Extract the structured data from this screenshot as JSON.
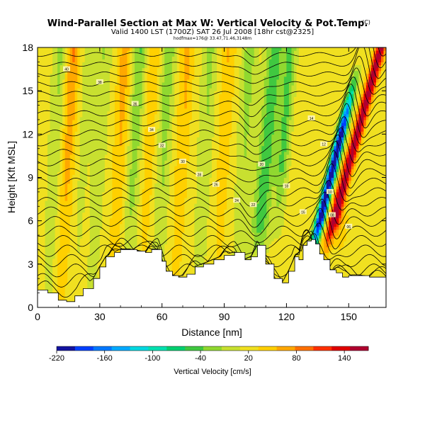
{
  "chart_data": {
    "type": "heatmap",
    "title": "Wind-Parallel Section at Max W: Vertical Velocity & Pot.Temp.",
    "title_mark": "(C)",
    "subtitle": "Valid 1400 LST (1700Z) SAT 26 Jul 2008 [18hr cst@2325]",
    "subtitle2": "hodfmax=176@ 33.47,71.46,3148m",
    "xlabel": "Distance [nm]",
    "ylabel": "Height [Kft MSL]",
    "xlim": [
      0,
      168
    ],
    "ylim": [
      0,
      18
    ],
    "xticks": [
      0,
      30,
      60,
      90,
      120,
      150
    ],
    "yticks": [
      0,
      3,
      6,
      9,
      12,
      15,
      18
    ],
    "grid": false,
    "colorbar": {
      "label": "Vertical Velocity [cm/s]",
      "tick_labels": [
        "-220",
        "-160",
        "-100",
        "-40",
        "20",
        "80",
        "140"
      ],
      "tick_values": [
        -220,
        -160,
        -100,
        -40,
        20,
        80,
        140
      ],
      "range": [
        -220,
        170
      ],
      "colors": [
        "#1414a0",
        "#0040ff",
        "#0078ff",
        "#00aaff",
        "#00d8e0",
        "#00e0b0",
        "#00d070",
        "#40c840",
        "#90d830",
        "#c8e030",
        "#f0e020",
        "#ffd000",
        "#ffa800",
        "#ff7000",
        "#ff3000",
        "#e00000",
        "#b00030"
      ]
    },
    "terrain_profile": {
      "x": [
        0,
        5,
        10,
        14,
        18,
        22,
        27,
        30,
        33,
        37,
        40,
        44,
        48,
        52,
        55,
        58,
        60,
        62,
        65,
        68,
        72,
        76,
        80,
        85,
        90,
        95,
        100,
        103,
        106,
        110,
        114,
        118,
        121,
        124,
        126,
        128,
        130,
        132,
        134,
        136,
        138,
        141,
        144,
        147,
        150,
        155,
        160,
        168
      ],
      "z": [
        1.2,
        1.0,
        0.5,
        0.4,
        0.8,
        1.3,
        2.0,
        2.8,
        3.5,
        3.8,
        4.0,
        4.0,
        3.9,
        3.8,
        4.0,
        4.0,
        3.2,
        2.5,
        2.2,
        2.1,
        2.3,
        2.8,
        3.0,
        3.3,
        3.6,
        3.8,
        3.3,
        3.5,
        4.3,
        3.0,
        2.0,
        1.7,
        2.5,
        3.5,
        3.3,
        4.3,
        4.6,
        4.7,
        4.4,
        3.7,
        3.3,
        2.6,
        2.4,
        2.1,
        2.2,
        2.2,
        2.1,
        2.0
      ]
    },
    "theta_contour_labels": [
      "40",
      "38",
      "36",
      "34",
      "32",
      "30",
      "28",
      "26",
      "24",
      "22",
      "20",
      "18",
      "16",
      "14",
      "12",
      "10",
      "08",
      "06"
    ],
    "max_velocity_cm_s": 176
  }
}
